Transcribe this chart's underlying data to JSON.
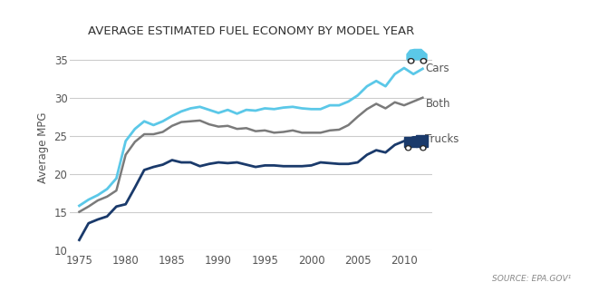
{
  "title": "AVERAGE ESTIMATED FUEL ECONOMY BY MODEL YEAR",
  "ylabel": "Average MPG",
  "source_text": "SOURCE: EPA.GOV¹",
  "xlim": [
    1974,
    2013
  ],
  "ylim": [
    10,
    37
  ],
  "yticks": [
    10,
    15,
    20,
    25,
    30,
    35
  ],
  "xticks": [
    1975,
    1980,
    1985,
    1990,
    1995,
    2000,
    2005,
    2010
  ],
  "cars_color": "#5bc8e8",
  "both_color": "#7a7a7a",
  "trucks_color": "#1a3a6b",
  "legend_labels": [
    "Cars",
    "Both",
    "Trucks"
  ],
  "years": [
    1975,
    1976,
    1977,
    1978,
    1979,
    1980,
    1981,
    1982,
    1983,
    1984,
    1985,
    1986,
    1987,
    1988,
    1989,
    1990,
    1991,
    1992,
    1993,
    1994,
    1995,
    1996,
    1997,
    1998,
    1999,
    2000,
    2001,
    2002,
    2003,
    2004,
    2005,
    2006,
    2007,
    2008,
    2009,
    2010,
    2011,
    2012
  ],
  "cars": [
    15.8,
    16.6,
    17.2,
    18.0,
    19.4,
    24.3,
    25.9,
    26.9,
    26.4,
    26.9,
    27.6,
    28.2,
    28.6,
    28.8,
    28.4,
    28.0,
    28.4,
    27.9,
    28.4,
    28.3,
    28.6,
    28.5,
    28.7,
    28.8,
    28.6,
    28.5,
    28.5,
    29.0,
    29.0,
    29.5,
    30.3,
    31.5,
    32.2,
    31.5,
    33.1,
    33.9,
    33.1,
    33.8
  ],
  "both": [
    15.0,
    15.7,
    16.5,
    17.0,
    17.8,
    22.5,
    24.2,
    25.2,
    25.2,
    25.5,
    26.3,
    26.8,
    26.9,
    27.0,
    26.5,
    26.2,
    26.3,
    25.9,
    26.0,
    25.6,
    25.7,
    25.4,
    25.5,
    25.7,
    25.4,
    25.4,
    25.4,
    25.7,
    25.8,
    26.4,
    27.5,
    28.5,
    29.2,
    28.6,
    29.4,
    29.0,
    29.5,
    30.0
  ],
  "trucks": [
    11.3,
    13.5,
    14.0,
    14.4,
    15.7,
    16.0,
    18.2,
    20.5,
    20.9,
    21.2,
    21.8,
    21.5,
    21.5,
    21.0,
    21.3,
    21.5,
    21.4,
    21.5,
    21.2,
    20.9,
    21.1,
    21.1,
    21.0,
    21.0,
    21.0,
    21.1,
    21.5,
    21.4,
    21.3,
    21.3,
    21.5,
    22.5,
    23.1,
    22.8,
    23.8,
    24.3,
    24.8,
    24.8
  ]
}
